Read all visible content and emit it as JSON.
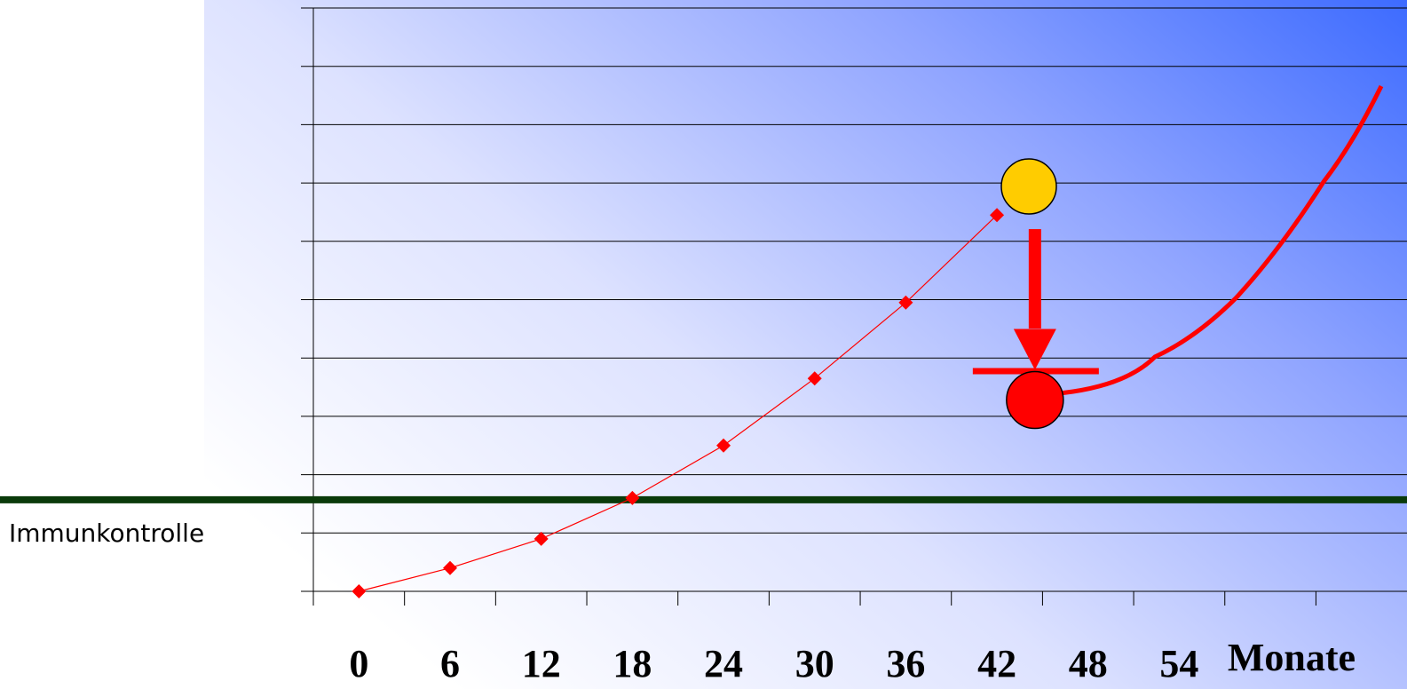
{
  "chart_data": {
    "type": "line",
    "x_label": "Monate",
    "x": [
      0,
      6,
      12,
      18,
      24,
      30,
      36,
      42
    ],
    "series": [
      {
        "color": "#ff0000",
        "values": [
          0,
          0.4,
          0.9,
          1.6,
          2.5,
          3.65,
          4.95,
          6.45
        ]
      }
    ],
    "xlim": [
      -3,
      68
    ],
    "ylim": [
      0,
      10
    ],
    "xticks": [
      0,
      6,
      12,
      18,
      24,
      30,
      36,
      42,
      48,
      54
    ],
    "xtick_marks": [
      -3,
      3,
      9,
      15,
      21,
      27,
      33,
      39,
      45,
      51,
      57,
      63
    ],
    "yticks": [
      0,
      1,
      2,
      3,
      4,
      5,
      6,
      7,
      8,
      9,
      10
    ],
    "grid": true,
    "threshold": {
      "label": "Immunkontrolle",
      "value": 1.57,
      "color": "#0a3a0a"
    },
    "events": [
      {
        "x": 44.1,
        "y": 6.94,
        "color": "#ffcc00"
      },
      {
        "x": 44.5,
        "y": 3.28,
        "color": "#ff0000"
      }
    ],
    "relapse_curve": {
      "color": "#ff0000",
      "x": [
        46.3,
        52.4,
        57.7,
        63.5,
        67.3
      ],
      "values": [
        3.4,
        4.02,
        5.02,
        7.02,
        8.66
      ]
    }
  }
}
